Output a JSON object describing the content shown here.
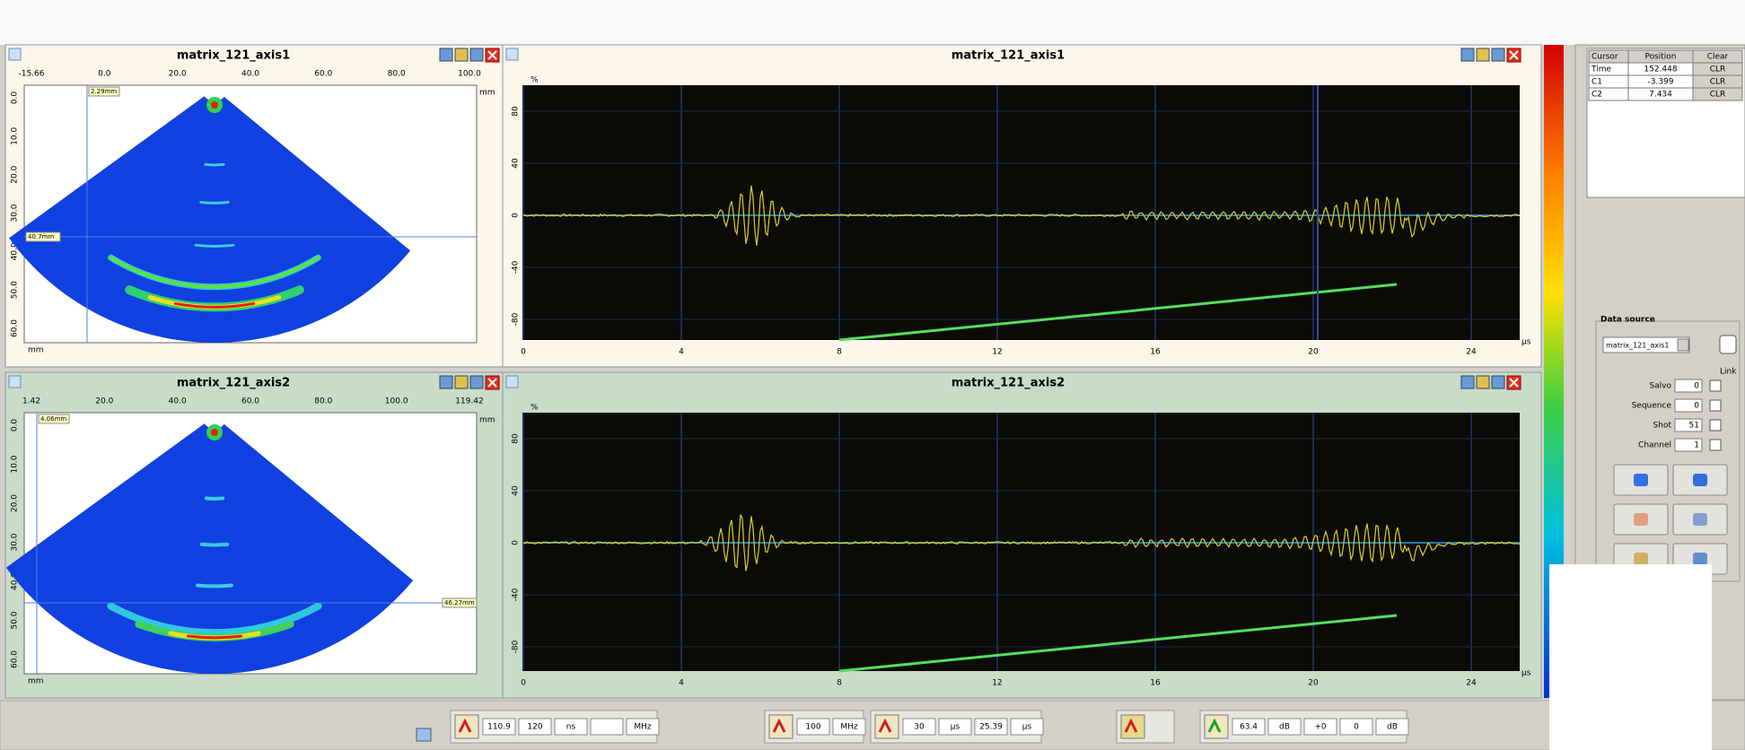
{
  "sector_views": [
    {
      "title": "matrix_121_axis1",
      "x_ticks": [
        "-15.66",
        "0.0",
        "20.0",
        "40.0",
        "60.0",
        "80.0",
        "100.0"
      ],
      "y_ticks": [
        "0.0",
        "10.0",
        "20.0",
        "30.0",
        "40.0",
        "50.0",
        "60.0"
      ],
      "unit": "mm",
      "cursor_labels": [
        "2.29mm",
        "40.7mm"
      ]
    },
    {
      "title": "matrix_121_axis2",
      "x_ticks": [
        "1.42",
        "20.0",
        "40.0",
        "60.0",
        "80.0",
        "100.0",
        "119.42"
      ],
      "y_ticks": [
        "0.0",
        "10.0",
        "20.0",
        "30.0",
        "40.0",
        "50.0",
        "60.0"
      ],
      "unit": "mm",
      "cursor_labels": [
        "4.06mm",
        "46.27mm"
      ]
    }
  ],
  "ascan_views": [
    {
      "title": "matrix_121_axis1",
      "x_ticks": [
        "0",
        "4",
        "8",
        "12",
        "16",
        "20",
        "24"
      ],
      "y_ticks": [
        "80",
        "40",
        "0",
        "-40",
        "-80"
      ],
      "y_unit": "%",
      "x_unit": "µs"
    },
    {
      "title": "matrix_121_axis2",
      "x_ticks": [
        "0",
        "4",
        "8",
        "12",
        "16",
        "20",
        "24"
      ],
      "y_ticks": [
        "80",
        "40",
        "0",
        "-40",
        "-80"
      ],
      "y_unit": "%",
      "x_unit": "µs"
    }
  ],
  "cursor_table": {
    "headers": [
      "Cursor",
      "Position",
      "Clear"
    ],
    "rows": [
      [
        "Time",
        "152.448",
        "CLR"
      ],
      [
        "C1",
        "-3.399",
        "CLR"
      ],
      [
        "C2",
        "7.434",
        "CLR"
      ]
    ]
  },
  "data_source": {
    "title": "Data source",
    "selected": "matrix_121_axis1",
    "link_label": "Link",
    "fields": [
      [
        "Salvo",
        "0"
      ],
      [
        "Sequence",
        "0"
      ],
      [
        "Shot",
        "51"
      ],
      [
        "Channel",
        "1"
      ]
    ]
  },
  "toolbar": {
    "groups": [
      [
        "110.9",
        "120",
        "ns",
        "",
        "MHz"
      ],
      [
        "100",
        "MHz"
      ],
      [
        "30",
        "µs",
        "25.39",
        "µs"
      ],
      [],
      [
        "63.4",
        "dB",
        "+0",
        "0",
        "dB"
      ]
    ]
  }
}
